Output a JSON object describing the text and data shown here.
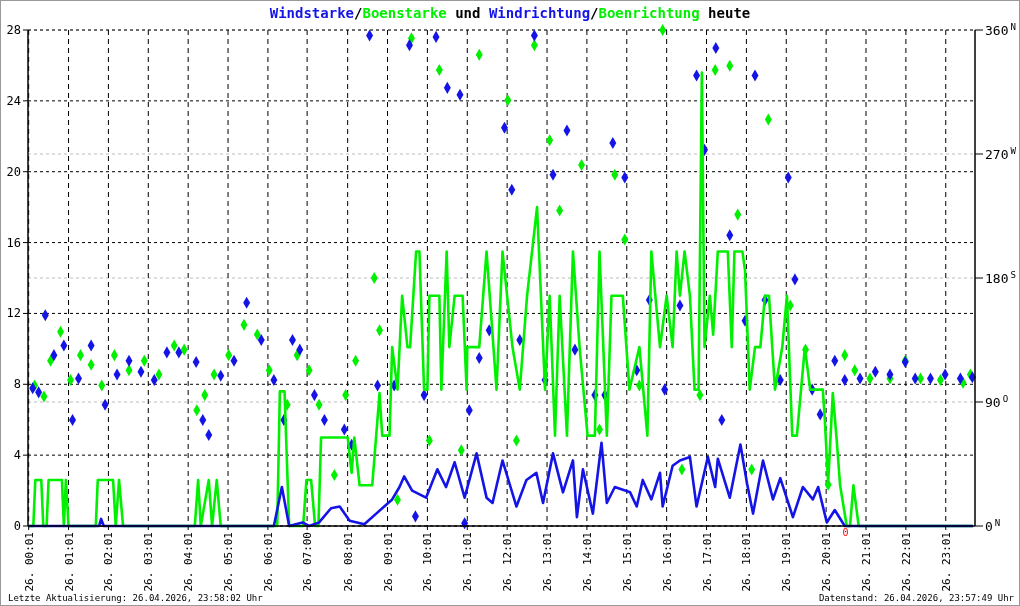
{
  "chart_data": {
    "type": "line",
    "title": "Windstarke/Boenstarke und Windrichtung/Boenrichtung heute",
    "xlim": [
      "2026-04-26T00:00",
      "2026-04-26T23:45"
    ],
    "xticks": [
      {
        "value": "2026-04-26T00:01",
        "label": "26. 00:01"
      },
      {
        "value": "2026-04-26T01:01",
        "label": "26. 01:01"
      },
      {
        "value": "2026-04-26T02:01",
        "label": "26. 02:01"
      },
      {
        "value": "2026-04-26T03:01",
        "label": "26. 03:01"
      },
      {
        "value": "2026-04-26T04:01",
        "label": "26. 04:01"
      },
      {
        "value": "2026-04-26T05:01",
        "label": "26. 05:01"
      },
      {
        "value": "2026-04-26T06:01",
        "label": "26. 06:01"
      },
      {
        "value": "2026-04-26T07:00",
        "label": "26. 07:00"
      },
      {
        "value": "2026-04-26T08:01",
        "label": "26. 08:01"
      },
      {
        "value": "2026-04-26T09:01",
        "label": "26. 09:01"
      },
      {
        "value": "2026-04-26T10:01",
        "label": "26. 10:01"
      },
      {
        "value": "2026-04-26T11:01",
        "label": "26. 11:01"
      },
      {
        "value": "2026-04-26T12:01",
        "label": "26. 12:01"
      },
      {
        "value": "2026-04-26T13:01",
        "label": "26. 13:01"
      },
      {
        "value": "2026-04-26T14:01",
        "label": "26. 14:01"
      },
      {
        "value": "2026-04-26T15:01",
        "label": "26. 15:01"
      },
      {
        "value": "2026-04-26T16:01",
        "label": "26. 16:01"
      },
      {
        "value": "2026-04-26T17:01",
        "label": "26. 17:01"
      },
      {
        "value": "2026-04-26T18:01",
        "label": "26. 18:01"
      },
      {
        "value": "2026-04-26T19:01",
        "label": "26. 19:01"
      },
      {
        "value": "2026-04-26T20:01",
        "label": "26. 20:01"
      },
      {
        "value": "2026-04-26T21:01",
        "label": "26. 21:01"
      },
      {
        "value": "2026-04-26T22:01",
        "label": "26. 22:01"
      },
      {
        "value": "2026-04-26T23:01",
        "label": "26. 23:01"
      }
    ],
    "ylim": [
      0,
      28
    ],
    "yticks": [
      0,
      4,
      8,
      12,
      16,
      20,
      24,
      28
    ],
    "y2lim": [
      0,
      360
    ],
    "y2ticks": [
      {
        "value": 0,
        "label": "0$^{N}$"
      },
      {
        "value": 90,
        "label": "90$^{O}$"
      },
      {
        "value": 180,
        "label": "180$^{S}$"
      },
      {
        "value": 270,
        "label": "270$^{W}$"
      },
      {
        "value": 360,
        "label": "360$^{N}$"
      }
    ],
    "grid": true,
    "annotations": [
      "Letzte Aktualisierung: 26.04.2026, 23:58:02 Uhr",
      "Datenstand: 26.04.2026, 23:57:49 Uhr",
      {
        "text": "0",
        "x": "2026-04-26T20:30",
        "y": 0
      }
    ],
    "series": [
      {
        "marker": "none",
        "color": "#1414e6",
        "x": [
          "2026-04-26T00:01",
          "2026-04-26T01:47",
          "2026-04-26T01:50",
          "2026-04-26T01:54",
          "2026-04-26T06:10",
          "2026-04-26T06:22",
          "2026-04-26T06:33",
          "2026-04-26T06:53",
          "2026-04-26T07:03",
          "2026-04-26T07:18",
          "2026-04-26T07:36",
          "2026-04-26T07:49",
          "2026-04-26T08:04",
          "2026-04-26T08:26",
          "2026-04-26T08:44",
          "2026-04-26T09:08",
          "2026-04-26T09:19",
          "2026-04-26T09:26",
          "2026-04-26T09:38",
          "2026-04-26T09:59",
          "2026-04-26T10:16",
          "2026-04-26T10:29",
          "2026-04-26T10:42",
          "2026-04-26T10:57",
          "2026-04-26T11:15",
          "2026-04-26T11:30",
          "2026-04-26T11:39",
          "2026-04-26T11:54",
          "2026-04-26T12:15",
          "2026-04-26T12:30",
          "2026-04-26T12:45",
          "2026-04-26T12:55",
          "2026-04-26T13:10",
          "2026-04-26T13:25",
          "2026-04-26T13:40",
          "2026-04-26T13:46",
          "2026-04-26T13:55",
          "2026-04-26T14:10",
          "2026-04-26T14:23",
          "2026-04-26T14:31",
          "2026-04-26T14:43",
          "2026-04-26T15:06",
          "2026-04-26T15:16",
          "2026-04-26T15:25",
          "2026-04-26T15:38",
          "2026-04-26T15:51",
          "2026-04-26T15:55",
          "2026-04-26T16:10",
          "2026-04-26T16:21",
          "2026-04-26T16:36",
          "2026-04-26T16:46",
          "2026-04-26T17:03",
          "2026-04-26T17:14",
          "2026-04-26T17:18",
          "2026-04-26T17:36",
          "2026-04-26T17:52",
          "2026-04-26T18:02",
          "2026-04-26T18:11",
          "2026-04-26T18:26",
          "2026-04-26T18:41",
          "2026-04-26T18:52",
          "2026-04-26T19:11",
          "2026-04-26T19:26",
          "2026-04-26T19:41",
          "2026-04-26T19:49",
          "2026-04-26T20:02",
          "2026-04-26T20:14",
          "2026-04-26T20:29",
          "2026-04-26T23:42"
        ],
        "values": [
          0,
          0,
          0.4,
          0,
          0,
          2.2,
          0,
          0.2,
          0,
          0.2,
          1.0,
          1.1,
          0.3,
          0.1,
          0.7,
          1.5,
          2.2,
          2.8,
          2.0,
          1.6,
          3.2,
          2.2,
          3.6,
          1.6,
          4.1,
          1.6,
          1.3,
          3.7,
          1.1,
          2.6,
          3.0,
          1.3,
          4.1,
          1.9,
          3.7,
          0.5,
          3.2,
          0.7,
          4.7,
          1.3,
          2.2,
          1.9,
          1.1,
          2.6,
          1.5,
          3.0,
          1.1,
          3.4,
          3.7,
          3.9,
          1.1,
          3.9,
          2.2,
          3.8,
          1.6,
          4.6,
          2.4,
          0.7,
          3.7,
          1.5,
          2.7,
          0.5,
          2.2,
          1.5,
          2.2,
          0.2,
          0.9,
          0,
          0
        ]
      },
      {
        "marker": "none",
        "color": "#00f000",
        "x": [
          "2026-04-26T00:01",
          "2026-04-26T00:08",
          "2026-04-26T00:11",
          "2026-04-26T00:20",
          "2026-04-26T00:23",
          "2026-04-26T00:28",
          "2026-04-26T00:31",
          "2026-04-26T00:51",
          "2026-04-26T00:54",
          "2026-04-26T00:57",
          "2026-04-26T01:01",
          "2026-04-26T01:42",
          "2026-04-26T01:45",
          "2026-04-26T02:08",
          "2026-04-26T02:12",
          "2026-04-26T02:17",
          "2026-04-26T02:23",
          "2026-04-26T04:11",
          "2026-04-26T04:16",
          "2026-04-26T04:20",
          "2026-04-26T04:32",
          "2026-04-26T04:37",
          "2026-04-26T04:44",
          "2026-04-26T04:50",
          "2026-04-26T06:15",
          "2026-04-26T06:19",
          "2026-04-26T06:26",
          "2026-04-26T06:33",
          "2026-04-26T06:54",
          "2026-04-26T06:59",
          "2026-04-26T07:06",
          "2026-04-26T07:12",
          "2026-04-26T07:17",
          "2026-04-26T07:21",
          "2026-04-26T08:01",
          "2026-04-26T08:07",
          "2026-04-26T08:11",
          "2026-04-26T08:19",
          "2026-04-26T08:38",
          "2026-04-26T08:49",
          "2026-04-26T08:53",
          "2026-04-26T09:04",
          "2026-04-26T09:08",
          "2026-04-26T09:16",
          "2026-04-26T09:23",
          "2026-04-26T09:31",
          "2026-04-26T09:35",
          "2026-04-26T09:44",
          "2026-04-26T09:49",
          "2026-04-26T09:56",
          "2026-04-26T10:01",
          "2026-04-26T10:04",
          "2026-04-26T10:19",
          "2026-04-26T10:22",
          "2026-04-26T10:30",
          "2026-04-26T10:34",
          "2026-04-26T10:42",
          "2026-04-26T10:54",
          "2026-04-26T11:00",
          "2026-04-26T11:01",
          "2026-04-26T11:19",
          "2026-04-26T11:30",
          "2026-04-26T11:45",
          "2026-04-26T11:54",
          "2026-04-26T12:09",
          "2026-04-26T12:20",
          "2026-04-26T12:31",
          "2026-04-26T12:46",
          "2026-04-26T12:58",
          "2026-04-26T13:05",
          "2026-04-26T13:13",
          "2026-04-26T13:20",
          "2026-04-26T13:31",
          "2026-04-26T13:40",
          "2026-04-26T13:50",
          "2026-04-26T14:02",
          "2026-04-26T14:13",
          "2026-04-26T14:20",
          "2026-04-26T14:31",
          "2026-04-26T14:38",
          "2026-04-26T14:55",
          "2026-04-26T15:05",
          "2026-04-26T15:20",
          "2026-04-26T15:32",
          "2026-04-26T15:38",
          "2026-04-26T15:51",
          "2026-04-26T16:01",
          "2026-04-26T16:10",
          "2026-04-26T16:16",
          "2026-04-26T16:21",
          "2026-04-26T16:28",
          "2026-04-26T16:36",
          "2026-04-26T16:43",
          "2026-04-26T16:49",
          "2026-04-26T16:54",
          "2026-04-26T16:58",
          "2026-04-26T17:06",
          "2026-04-26T17:11",
          "2026-04-26T17:18",
          "2026-04-26T17:33",
          "2026-04-26T17:39",
          "2026-04-26T17:43",
          "2026-04-26T17:55",
          "2026-04-26T17:59",
          "2026-04-26T18:06",
          "2026-04-26T18:14",
          "2026-04-26T18:22",
          "2026-04-26T18:29",
          "2026-04-26T18:35",
          "2026-04-26T18:44",
          "2026-04-26T18:55",
          "2026-04-26T19:02",
          "2026-04-26T19:10",
          "2026-04-26T19:17",
          "2026-04-26T19:29",
          "2026-04-26T19:37",
          "2026-04-26T19:56",
          "2026-04-26T19:59",
          "2026-04-26T20:04",
          "2026-04-26T20:11",
          "2026-04-26T20:17",
          "2026-04-26T20:22",
          "2026-04-26T20:32",
          "2026-04-26T20:37",
          "2026-04-26T20:42",
          "2026-04-26T20:50",
          "2026-04-26T23:42"
        ],
        "values": [
          0,
          0,
          2.6,
          2.6,
          0,
          0,
          2.6,
          2.6,
          0,
          2.6,
          0,
          0,
          2.6,
          2.6,
          0,
          2.6,
          0,
          0,
          2.6,
          0,
          2.6,
          0,
          2.6,
          0,
          0,
          7.6,
          7.6,
          0,
          0,
          2.6,
          2.6,
          0,
          0,
          5.0,
          5.0,
          3.0,
          5.0,
          2.3,
          2.3,
          7.5,
          5.1,
          5.1,
          10.1,
          7.7,
          13.0,
          10.1,
          10.1,
          15.5,
          15.5,
          7.7,
          7.7,
          13.0,
          13.0,
          7.7,
          15.5,
          10.1,
          13.0,
          13.0,
          7.7,
          10.1,
          10.1,
          15.5,
          7.7,
          15.5,
          10.1,
          7.7,
          13.0,
          18.0,
          7.7,
          13.0,
          5.1,
          13.0,
          5.1,
          15.5,
          10.1,
          5.1,
          5.1,
          15.5,
          5.1,
          13.0,
          13.0,
          7.7,
          10.1,
          5.1,
          15.5,
          10.1,
          13.0,
          10.1,
          15.5,
          13.0,
          15.5,
          13.0,
          7.7,
          7.7,
          25.6,
          10.1,
          13.0,
          10.8,
          15.5,
          15.5,
          10.1,
          15.5,
          15.5,
          14.4,
          7.7,
          10.1,
          10.1,
          13.0,
          13.0,
          7.7,
          10.1,
          13.0,
          5.1,
          5.1,
          10.1,
          7.7,
          7.7,
          6.0,
          2.4,
          7.5,
          4.8,
          2.3,
          0,
          0,
          2.3,
          0,
          0
        ]
      },
      {
        "type": "scatter",
        "marker": "diamond",
        "axis": "y2",
        "color": "#1414e6",
        "x": [
          "2026-04-26T00:07",
          "2026-04-26T00:16",
          "2026-04-26T00:26",
          "2026-04-26T00:39",
          "2026-04-26T00:54",
          "2026-04-26T01:07",
          "2026-04-26T01:16",
          "2026-04-26T01:35",
          "2026-04-26T01:56",
          "2026-04-26T02:14",
          "2026-04-26T02:32",
          "2026-04-26T02:50",
          "2026-04-26T03:10",
          "2026-04-26T03:29",
          "2026-04-26T03:47",
          "2026-04-26T04:13",
          "2026-04-26T04:23",
          "2026-04-26T04:32",
          "2026-04-26T04:50",
          "2026-04-26T05:10",
          "2026-04-26T05:29",
          "2026-04-26T05:51",
          "2026-04-26T06:10",
          "2026-04-26T06:25",
          "2026-04-26T06:38",
          "2026-04-26T06:49",
          "2026-04-26T07:11",
          "2026-04-26T07:26",
          "2026-04-26T07:56",
          "2026-04-26T08:07",
          "2026-04-26T08:34",
          "2026-04-26T08:46",
          "2026-04-26T09:11",
          "2026-04-26T09:34",
          "2026-04-26T09:43",
          "2026-04-26T09:56",
          "2026-04-26T10:14",
          "2026-04-26T10:31",
          "2026-04-26T10:50",
          "2026-04-26T10:57",
          "2026-04-26T11:04",
          "2026-04-26T11:19",
          "2026-04-26T11:34",
          "2026-04-26T11:57",
          "2026-04-26T12:08",
          "2026-04-26T12:20",
          "2026-04-26T12:42",
          "2026-04-26T12:58",
          "2026-04-26T13:10",
          "2026-04-26T13:31",
          "2026-04-26T13:43",
          "2026-04-26T14:13",
          "2026-04-26T14:28",
          "2026-04-26T14:40",
          "2026-04-26T14:58",
          "2026-04-26T15:16",
          "2026-04-26T15:35",
          "2026-04-26T15:58",
          "2026-04-26T16:21",
          "2026-04-26T16:46",
          "2026-04-26T16:58",
          "2026-04-26T17:15",
          "2026-04-26T17:24",
          "2026-04-26T17:36",
          "2026-04-26T17:59",
          "2026-04-26T18:14",
          "2026-04-26T18:29",
          "2026-04-26T18:52",
          "2026-04-26T19:04",
          "2026-04-26T19:14",
          "2026-04-26T19:40",
          "2026-04-26T19:52",
          "2026-04-26T20:14",
          "2026-04-26T20:29",
          "2026-04-26T20:52",
          "2026-04-26T21:15",
          "2026-04-26T21:37",
          "2026-04-26T22:00",
          "2026-04-26T22:15",
          "2026-04-26T22:38",
          "2026-04-26T23:00",
          "2026-04-26T23:23",
          "2026-04-26T23:41"
        ],
        "values": [
          100,
          97,
          153,
          124,
          131,
          77,
          107,
          131,
          88,
          110,
          120,
          112,
          106,
          126,
          126,
          119,
          77,
          66,
          109,
          120,
          162,
          135,
          106,
          77,
          135,
          128,
          95,
          77,
          70,
          59,
          356,
          102,
          102,
          349,
          7,
          95,
          355,
          318,
          313,
          2,
          84,
          122,
          142,
          289,
          244,
          135,
          356,
          106,
          255,
          287,
          128,
          95,
          95,
          278,
          253,
          113,
          164,
          99,
          160,
          327,
          273,
          347,
          77,
          211,
          149,
          327,
          164,
          106,
          253,
          179,
          99,
          81,
          120,
          106,
          107,
          112,
          110,
          119,
          107,
          107,
          110,
          107,
          108
        ]
      },
      {
        "type": "scatter",
        "marker": "diamond",
        "axis": "y2",
        "color": "#00f000",
        "x": [
          "2026-04-26T00:10",
          "2026-04-26T00:24",
          "2026-04-26T00:34",
          "2026-04-26T00:49",
          "2026-04-26T01:04",
          "2026-04-26T01:19",
          "2026-04-26T01:35",
          "2026-04-26T01:51",
          "2026-04-26T02:10",
          "2026-04-26T02:32",
          "2026-04-26T02:55",
          "2026-04-26T03:17",
          "2026-04-26T03:40",
          "2026-04-26T03:55",
          "2026-04-26T04:14",
          "2026-04-26T04:26",
          "2026-04-26T04:40",
          "2026-04-26T05:02",
          "2026-04-26T05:25",
          "2026-04-26T05:45",
          "2026-04-26T06:03",
          "2026-04-26T06:30",
          "2026-04-26T06:45",
          "2026-04-26T07:03",
          "2026-04-26T07:18",
          "2026-04-26T07:41",
          "2026-04-26T07:58",
          "2026-04-26T08:13",
          "2026-04-26T08:41",
          "2026-04-26T08:49",
          "2026-04-26T09:16",
          "2026-04-26T09:37",
          "2026-04-26T10:04",
          "2026-04-26T10:19",
          "2026-04-26T10:52",
          "2026-04-26T11:19",
          "2026-04-26T12:02",
          "2026-04-26T12:15",
          "2026-04-26T12:42",
          "2026-04-26T13:05",
          "2026-04-26T13:20",
          "2026-04-26T13:53",
          "2026-04-26T14:20",
          "2026-04-26T14:43",
          "2026-04-26T14:58",
          "2026-04-26T15:20",
          "2026-04-26T15:55",
          "2026-04-26T16:24",
          "2026-04-26T16:51",
          "2026-04-26T17:14",
          "2026-04-26T17:36",
          "2026-04-26T17:48",
          "2026-04-26T18:09",
          "2026-04-26T18:34",
          "2026-04-26T18:49",
          "2026-04-26T19:07",
          "2026-04-26T19:30",
          "2026-04-26T20:04",
          "2026-04-26T20:29",
          "2026-04-26T20:44",
          "2026-04-26T21:07",
          "2026-04-26T21:37",
          "2026-04-26T22:00",
          "2026-04-26T22:23",
          "2026-04-26T22:53",
          "2026-04-26T23:27",
          "2026-04-26T23:38"
        ],
        "values": [
          102,
          94,
          120,
          141,
          106,
          124,
          117,
          102,
          124,
          113,
          120,
          110,
          131,
          128,
          84,
          95,
          110,
          124,
          146,
          139,
          113,
          88,
          124,
          113,
          88,
          37,
          95,
          120,
          180,
          142,
          19,
          354,
          62,
          331,
          55,
          342,
          309,
          62,
          349,
          280,
          229,
          262,
          70,
          255,
          208,
          102,
          360,
          41,
          95,
          331,
          334,
          226,
          41,
          295,
          107,
          160,
          128,
          30,
          124,
          113,
          107,
          107,
          120,
          107,
          106,
          104,
          110
        ]
      }
    ]
  }
}
